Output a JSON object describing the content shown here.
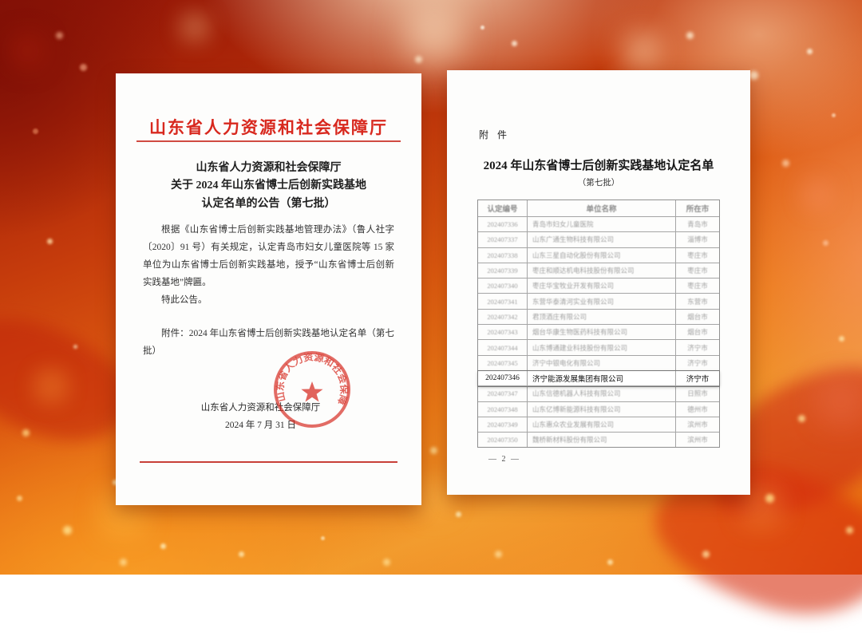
{
  "left_page": {
    "letterhead": "山东省人力资源和社会保障厅",
    "title_line1": "山东省人力资源和社会保障厅",
    "title_line2": "关于 2024 年山东省博士后创新实践基地",
    "title_line3": "认定名单的公告（第七批）",
    "body_p1": "根据《山东省博士后创新实践基地管理办法》（鲁人社字〔2020〕91 号）有关规定，认定青岛市妇女儿童医院等 15 家单位为山东省博士后创新实践基地，授予“山东省博士后创新实践基地”牌匾。",
    "body_p2": "特此公告。",
    "attachment_line": "附件：2024 年山东省博士后创新实践基地认定名单（第七批）",
    "seal_text": "山东省人力资源和社会保障厅",
    "signer": "山东省人力资源和社会保障厅",
    "date": "2024 年 7 月 31 日",
    "accent_color": "#d8281e"
  },
  "right_page": {
    "attachment_label": "附 件",
    "title": "2024 年山东省博士后创新实践基地认定名单",
    "subtitle": "（第七批）",
    "page_number": "— 2 —",
    "table": {
      "headers": [
        "认定编号",
        "单位名称",
        "所在市"
      ],
      "highlight_index": 10,
      "rows": [
        {
          "code": "202407336",
          "name": "青岛市妇女儿童医院",
          "city": "青岛市"
        },
        {
          "code": "202407337",
          "name": "山东广通生物科技有限公司",
          "city": "淄博市"
        },
        {
          "code": "202407338",
          "name": "山东三星自动化股份有限公司",
          "city": "枣庄市"
        },
        {
          "code": "202407339",
          "name": "枣庄和顺达机电科技股份有限公司",
          "city": "枣庄市"
        },
        {
          "code": "202407340",
          "name": "枣庄华宝牧业开发有限公司",
          "city": "枣庄市"
        },
        {
          "code": "202407341",
          "name": "东营华泰清河实业有限公司",
          "city": "东营市"
        },
        {
          "code": "202407342",
          "name": "君顶酒庄有限公司",
          "city": "烟台市"
        },
        {
          "code": "202407343",
          "name": "烟台华康生物医药科技有限公司",
          "city": "烟台市"
        },
        {
          "code": "202407344",
          "name": "山东博通建业科技股份有限公司",
          "city": "济宁市"
        },
        {
          "code": "202407345",
          "name": "济宁中银电化有限公司",
          "city": "济宁市"
        },
        {
          "code": "202407346",
          "name": "济宁能源发展集团有限公司",
          "city": "济宁市"
        },
        {
          "code": "202407347",
          "name": "山东信德机器人科技有限公司",
          "city": "日照市"
        },
        {
          "code": "202407348",
          "name": "山东亿博新能源科技有限公司",
          "city": "德州市"
        },
        {
          "code": "202407349",
          "name": "山东惠众农业发展有限公司",
          "city": "滨州市"
        },
        {
          "code": "202407350",
          "name": "魏桥新材料股份有限公司",
          "city": "滨州市"
        }
      ]
    }
  }
}
